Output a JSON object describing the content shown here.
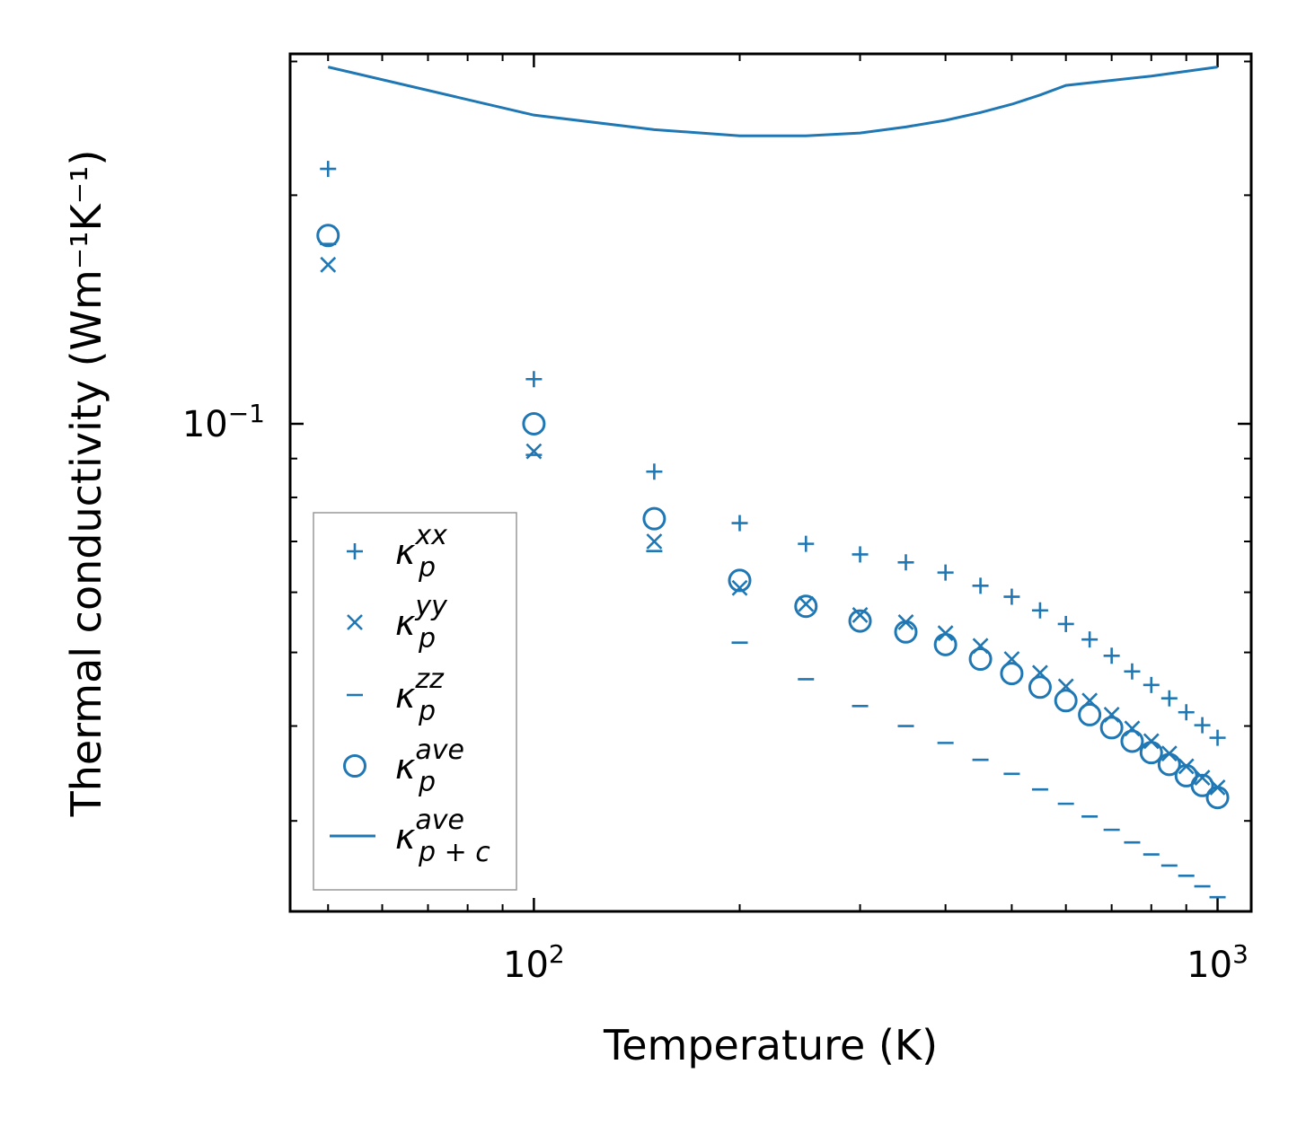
{
  "chart_data": {
    "type": "scatter",
    "title": "",
    "xlabel": "Temperature (K)",
    "ylabel": "Thermal conductivity (Wm⁻¹K⁻¹)",
    "xscale": "log",
    "yscale": "log",
    "xlim": [
      44,
      1120
    ],
    "ylim": [
      0.0228,
      0.307
    ],
    "x_ticks": [
      {
        "value": 100,
        "base": "10",
        "exp": "2"
      },
      {
        "value": 1000,
        "base": "10",
        "exp": "3"
      }
    ],
    "y_ticks": [
      {
        "value": 0.1,
        "base": "10",
        "exp": "−1"
      }
    ],
    "legend_position": "lower-left",
    "color": "#1f77b4",
    "x": [
      50,
      100,
      150,
      200,
      250,
      300,
      350,
      400,
      450,
      500,
      550,
      600,
      650,
      700,
      750,
      800,
      850,
      900,
      950,
      1000
    ],
    "series": [
      {
        "name": "kappa_p_xx",
        "label_base": "κ",
        "label_sub": "p",
        "label_sup": "xx",
        "marker": "plus",
        "values": [
          0.2166,
          0.1145,
          0.0865,
          0.074,
          0.0695,
          0.0673,
          0.0657,
          0.0637,
          0.0612,
          0.0592,
          0.0568,
          0.0545,
          0.052,
          0.0495,
          0.0472,
          0.0453,
          0.0435,
          0.0417,
          0.0401,
          0.0386
        ]
      },
      {
        "name": "kappa_p_yy",
        "label_base": "κ",
        "label_sub": "p",
        "label_sup": "yy",
        "marker": "x",
        "values": [
          0.162,
          0.092,
          0.07,
          0.0608,
          0.0579,
          0.056,
          0.0548,
          0.053,
          0.051,
          0.049,
          0.047,
          0.0451,
          0.0432,
          0.0414,
          0.0397,
          0.0382,
          0.0368,
          0.0354,
          0.0342,
          0.0332
        ]
      },
      {
        "name": "kappa_p_zz",
        "label_base": "κ",
        "label_sub": "p",
        "label_sup": "zz",
        "marker": "dash",
        "values": [
          0.1725,
          0.091,
          0.068,
          0.0515,
          0.0461,
          0.0425,
          0.04,
          0.038,
          0.0361,
          0.0346,
          0.033,
          0.0316,
          0.0304,
          0.0292,
          0.0281,
          0.0271,
          0.0262,
          0.0254,
          0.0246,
          0.0238
        ]
      },
      {
        "name": "kappa_p_ave",
        "label_base": "κ",
        "label_sub": "p",
        "label_sup": "ave",
        "marker": "circle",
        "values": [
          0.177,
          0.1,
          0.075,
          0.0622,
          0.0575,
          0.055,
          0.0532,
          0.0512,
          0.049,
          0.0469,
          0.045,
          0.0432,
          0.0414,
          0.0398,
          0.0382,
          0.0369,
          0.0356,
          0.0344,
          0.0334,
          0.0322
        ]
      },
      {
        "name": "kappa_pc_ave",
        "label_base": "κ",
        "label_sub": "p + c",
        "label_sup": "ave",
        "marker": "line",
        "values": [
          0.295,
          0.255,
          0.244,
          0.2395,
          0.2395,
          0.2415,
          0.246,
          0.251,
          0.257,
          0.2635,
          0.271,
          0.279,
          0.287,
          0.295
        ]
      }
    ],
    "line_x": [
      50,
      100,
      150,
      200,
      250,
      300,
      350,
      400,
      450,
      500,
      550,
      600,
      800,
      1000
    ]
  }
}
